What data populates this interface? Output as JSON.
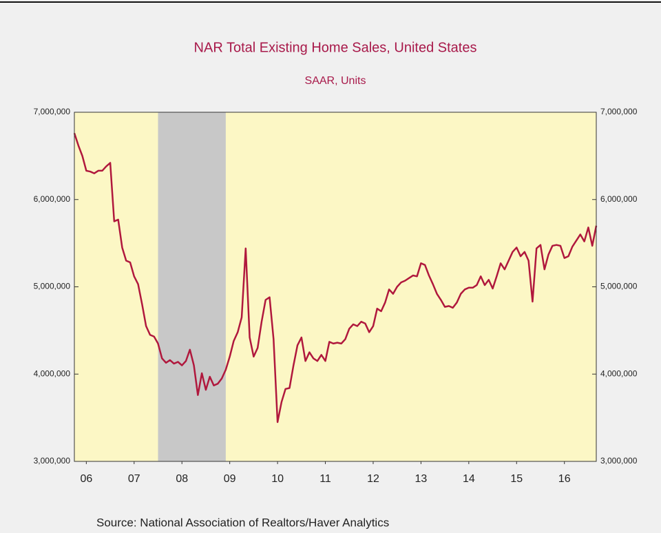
{
  "chart_data": {
    "type": "line",
    "title": "NAR Total Existing Home Sales, United States",
    "subtitle": "SAAR, Units",
    "source": "Source:  National Association of Realtors/Haver Analytics",
    "xlim": [
      0,
      131
    ],
    "xticks": [
      {
        "value": 3,
        "label": "06"
      },
      {
        "value": 15,
        "label": "07"
      },
      {
        "value": 27,
        "label": "08"
      },
      {
        "value": 39,
        "label": "09"
      },
      {
        "value": 51,
        "label": "10"
      },
      {
        "value": 63,
        "label": "11"
      },
      {
        "value": 75,
        "label": "12"
      },
      {
        "value": 87,
        "label": "13"
      },
      {
        "value": 99,
        "label": "14"
      },
      {
        "value": 111,
        "label": "15"
      },
      {
        "value": 123,
        "label": "16"
      }
    ],
    "ylim": [
      3000000,
      7000000
    ],
    "yticks": [
      {
        "value": 3000000,
        "label": "3,000,000"
      },
      {
        "value": 4000000,
        "label": "4,000,000"
      },
      {
        "value": 5000000,
        "label": "5,000,000"
      },
      {
        "value": 6000000,
        "label": "6,000,000"
      },
      {
        "value": 7000000,
        "label": "7,000,000"
      }
    ],
    "shaded": [
      [
        21,
        38
      ]
    ],
    "shade_color": "#c8c8c8",
    "plot_color": "#fcf7c5",
    "series": [
      {
        "color": "#b0183d",
        "values": [
          6760000,
          6620000,
          6500000,
          6330000,
          6320000,
          6300000,
          6330000,
          6330000,
          6380000,
          6420000,
          5750000,
          5770000,
          5450000,
          5300000,
          5280000,
          5120000,
          5030000,
          4800000,
          4550000,
          4450000,
          4430000,
          4350000,
          4180000,
          4130000,
          4160000,
          4120000,
          4140000,
          4100000,
          4150000,
          4280000,
          4100000,
          3760000,
          4010000,
          3820000,
          3970000,
          3870000,
          3890000,
          3950000,
          4050000,
          4200000,
          4380000,
          4480000,
          4650000,
          5440000,
          4420000,
          4200000,
          4300000,
          4600000,
          4850000,
          4880000,
          4400000,
          3450000,
          3680000,
          3830000,
          3840000,
          4100000,
          4330000,
          4420000,
          4150000,
          4250000,
          4180000,
          4150000,
          4220000,
          4150000,
          4370000,
          4350000,
          4360000,
          4350000,
          4400000,
          4520000,
          4570000,
          4550000,
          4600000,
          4580000,
          4480000,
          4550000,
          4750000,
          4720000,
          4820000,
          4970000,
          4920000,
          5000000,
          5050000,
          5070000,
          5100000,
          5130000,
          5120000,
          5270000,
          5250000,
          5130000,
          5030000,
          4920000,
          4850000,
          4770000,
          4780000,
          4760000,
          4820000,
          4920000,
          4970000,
          4990000,
          4990000,
          5020000,
          5120000,
          5020000,
          5080000,
          4980000,
          5120000,
          5270000,
          5200000,
          5300000,
          5400000,
          5450000,
          5350000,
          5400000,
          5300000,
          4830000,
          5440000,
          5480000,
          5200000,
          5370000,
          5470000,
          5480000,
          5470000,
          5330000,
          5350000,
          5460000,
          5530000,
          5600000,
          5520000,
          5680000,
          5470000,
          5700000
        ]
      }
    ]
  }
}
